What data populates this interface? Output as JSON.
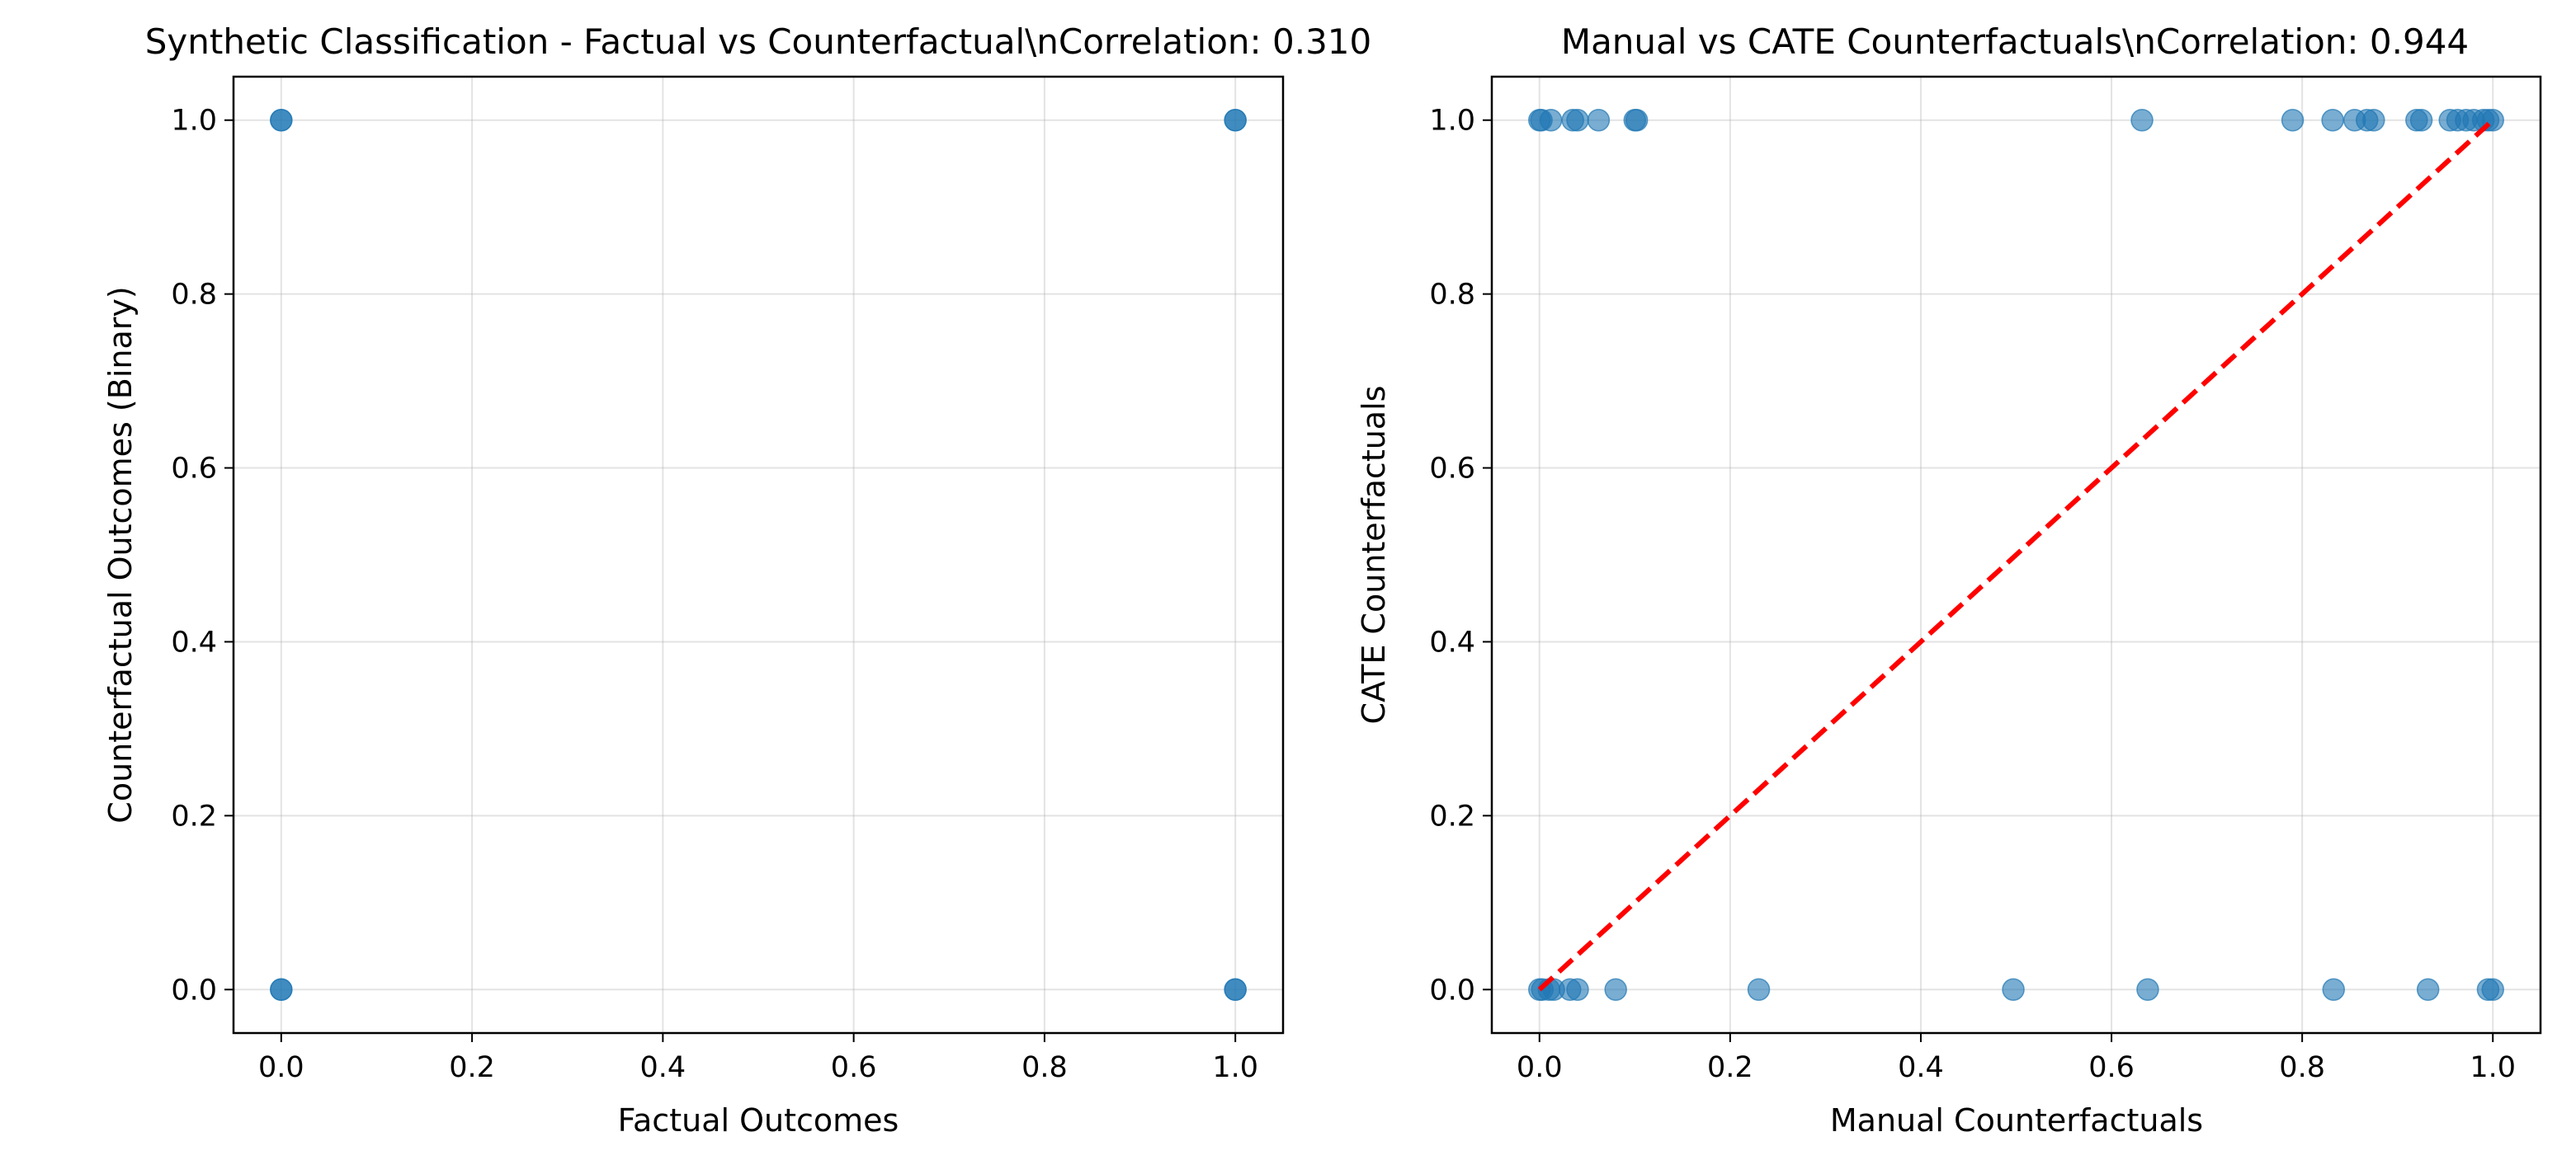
{
  "chart_data": [
    {
      "type": "scatter",
      "title": "Synthetic Classification - Factual vs Counterfactual\\nCorrelation: 0.310",
      "xlabel": "Factual Outcomes",
      "ylabel": "Counterfactual Outcomes (Binary)",
      "xlim": [
        -0.05,
        1.05
      ],
      "ylim": [
        -0.05,
        1.05
      ],
      "xticks": [
        "0.0",
        "0.2",
        "0.4",
        "0.6",
        "0.8",
        "1.0"
      ],
      "yticks": [
        "0.0",
        "0.2",
        "0.4",
        "0.6",
        "0.8",
        "1.0"
      ],
      "grid": true,
      "color": "#1f77b4",
      "points": [
        {
          "x": 0,
          "y": 0
        },
        {
          "x": 0,
          "y": 1
        },
        {
          "x": 1,
          "y": 0
        },
        {
          "x": 1,
          "y": 1
        }
      ]
    },
    {
      "type": "scatter",
      "title": "Manual vs CATE Counterfactuals\\nCorrelation: 0.944",
      "xlabel": "Manual Counterfactuals",
      "ylabel": "CATE Counterfactuals",
      "xlim": [
        -0.05,
        1.05
      ],
      "ylim": [
        -0.05,
        1.05
      ],
      "xticks": [
        "0.0",
        "0.2",
        "0.4",
        "0.6",
        "0.8",
        "1.0"
      ],
      "yticks": [
        "0.0",
        "0.2",
        "0.4",
        "0.6",
        "0.8",
        "1.0"
      ],
      "grid": true,
      "color": "#1f77b4",
      "reference_line": {
        "x": [
          0,
          1
        ],
        "y": [
          0,
          1
        ],
        "color": "#ff0000",
        "style": "dashed"
      },
      "points": [
        {
          "x": 0.0,
          "y": 1
        },
        {
          "x": 0.002,
          "y": 1
        },
        {
          "x": 0.012,
          "y": 1
        },
        {
          "x": 0.035,
          "y": 1
        },
        {
          "x": 0.04,
          "y": 1
        },
        {
          "x": 0.062,
          "y": 1
        },
        {
          "x": 0.1,
          "y": 1
        },
        {
          "x": 0.102,
          "y": 1
        },
        {
          "x": 0.632,
          "y": 1
        },
        {
          "x": 0.79,
          "y": 1
        },
        {
          "x": 0.832,
          "y": 1
        },
        {
          "x": 0.855,
          "y": 1
        },
        {
          "x": 0.868,
          "y": 1
        },
        {
          "x": 0.875,
          "y": 1
        },
        {
          "x": 0.92,
          "y": 1
        },
        {
          "x": 0.925,
          "y": 1
        },
        {
          "x": 0.955,
          "y": 1
        },
        {
          "x": 0.963,
          "y": 1
        },
        {
          "x": 0.972,
          "y": 1
        },
        {
          "x": 0.98,
          "y": 1
        },
        {
          "x": 0.99,
          "y": 1
        },
        {
          "x": 0.995,
          "y": 1
        },
        {
          "x": 1.0,
          "y": 1
        },
        {
          "x": 0.0,
          "y": 0
        },
        {
          "x": 0.003,
          "y": 0
        },
        {
          "x": 0.01,
          "y": 0
        },
        {
          "x": 0.015,
          "y": 0
        },
        {
          "x": 0.032,
          "y": 0
        },
        {
          "x": 0.04,
          "y": 0
        },
        {
          "x": 0.08,
          "y": 0
        },
        {
          "x": 0.23,
          "y": 0
        },
        {
          "x": 0.497,
          "y": 0
        },
        {
          "x": 0.638,
          "y": 0
        },
        {
          "x": 0.833,
          "y": 0
        },
        {
          "x": 0.932,
          "y": 0
        },
        {
          "x": 0.995,
          "y": 0
        },
        {
          "x": 1.0,
          "y": 0
        }
      ]
    }
  ]
}
